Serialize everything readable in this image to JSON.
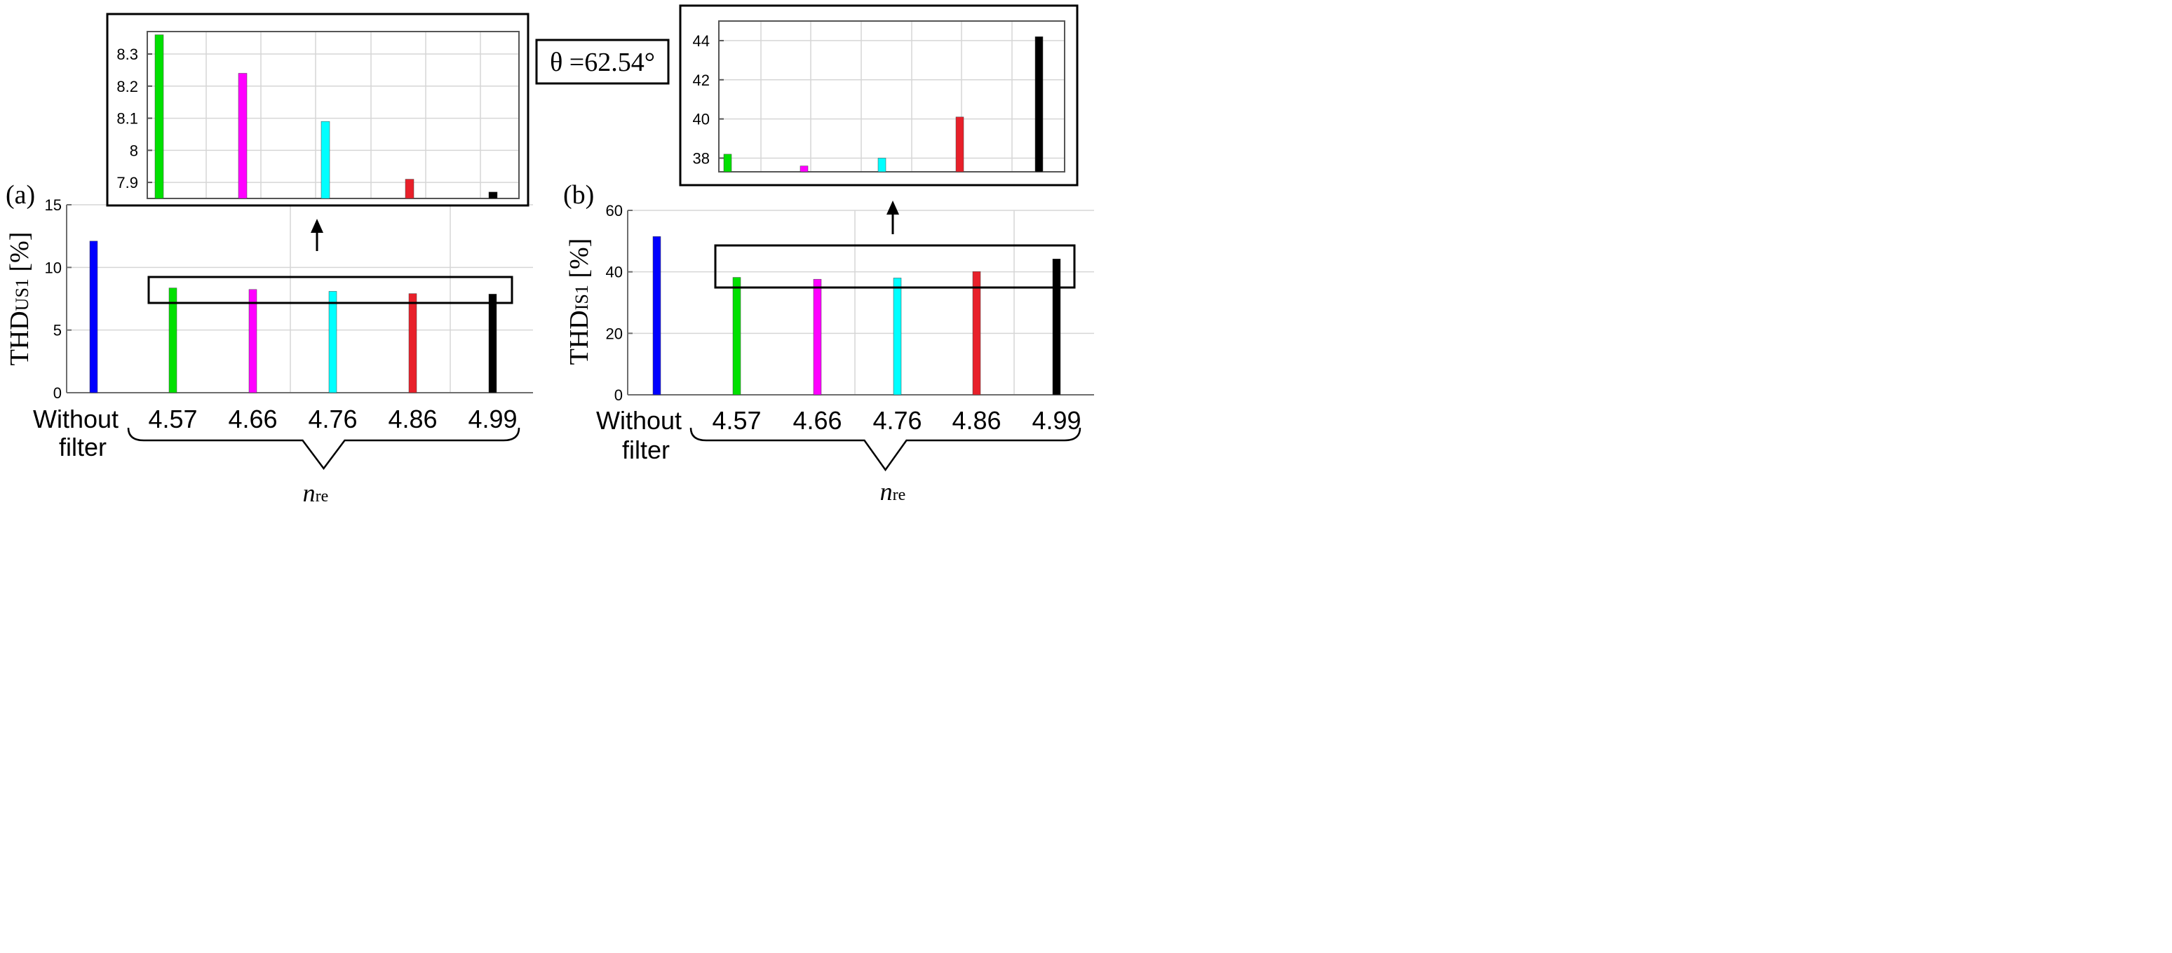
{
  "colors": [
    "#0000ff",
    "#00e000",
    "#ff00ff",
    "#00ffff",
    "#e8202a",
    "#000000"
  ],
  "angle_label": "θ =62.54°",
  "chart_data": [
    {
      "id": "a",
      "type": "bar",
      "panel_label": "(a)",
      "ylabel_main": "THD",
      "ylabel_sub": "US1",
      "ylabel_unit": " [%]",
      "categories": [
        "Without filter",
        "4.57",
        "4.66",
        "4.76",
        "4.86",
        "4.99"
      ],
      "category_lines": [
        [
          "Without",
          "filter"
        ],
        [
          "4.57"
        ],
        [
          "4.66"
        ],
        [
          "4.76"
        ],
        [
          "4.86"
        ],
        [
          "4.99"
        ]
      ],
      "values": [
        12.1,
        8.36,
        8.24,
        8.09,
        7.91,
        7.87
      ],
      "ylim": [
        0,
        15
      ],
      "yticks": [
        "0",
        "5",
        "10",
        "15"
      ],
      "xgroup_label_main": "n",
      "xgroup_label_sub": "re",
      "inset": {
        "values": [
          8.36,
          8.24,
          8.09,
          7.91,
          7.87
        ],
        "ylim": [
          7.85,
          8.37
        ],
        "yticks": [
          "7.9",
          "8",
          "8.1",
          "8.2",
          "8.3"
        ]
      }
    },
    {
      "id": "b",
      "type": "bar",
      "panel_label": "(b)",
      "ylabel_main": "THD",
      "ylabel_sub": "IS1",
      "ylabel_unit": " [%]",
      "categories": [
        "Without filter",
        "4.57",
        "4.66",
        "4.76",
        "4.86",
        "4.99"
      ],
      "category_lines": [
        [
          "Without",
          "filter"
        ],
        [
          "4.57"
        ],
        [
          "4.66"
        ],
        [
          "4.76"
        ],
        [
          "4.86"
        ],
        [
          "4.99"
        ]
      ],
      "values": [
        51.5,
        38.2,
        37.6,
        38.0,
        40.1,
        44.2
      ],
      "ylim": [
        0,
        60
      ],
      "yticks": [
        "0",
        "20",
        "40",
        "60"
      ],
      "xgroup_label_main": "n",
      "xgroup_label_sub": "re",
      "inset": {
        "values": [
          38.2,
          37.6,
          38.0,
          40.1,
          44.2
        ],
        "ylim": [
          37.3,
          45
        ],
        "yticks": [
          "38",
          "40",
          "42",
          "44"
        ]
      }
    }
  ]
}
